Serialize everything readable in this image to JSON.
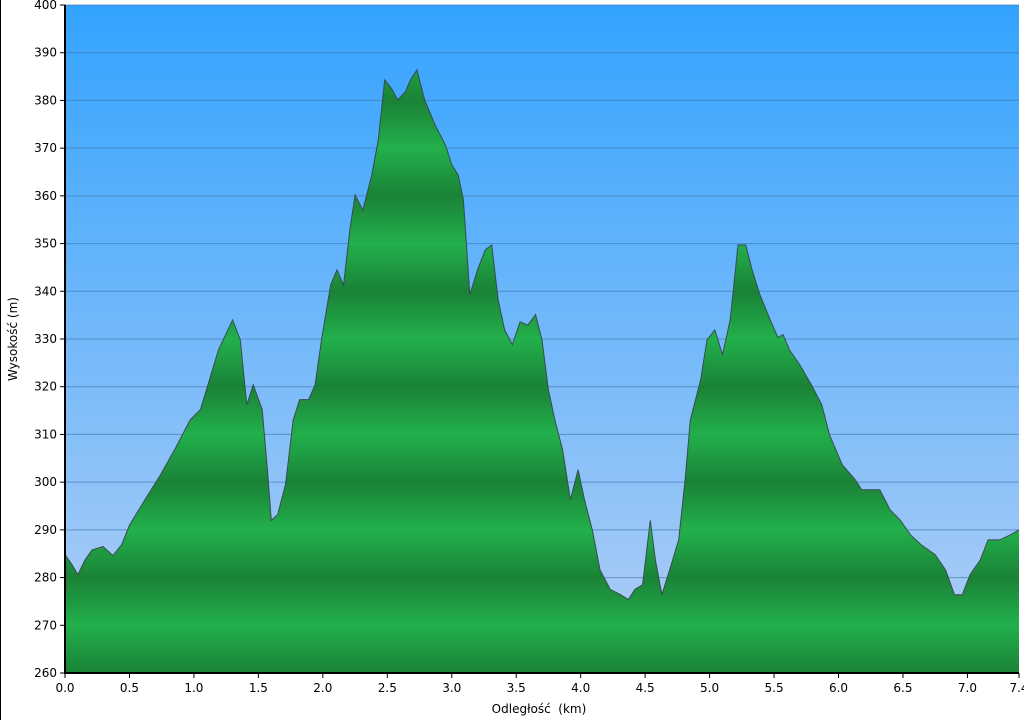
{
  "chart_data": {
    "type": "area",
    "title": "",
    "xlabel": "Odległość  (km)",
    "ylabel": "Wysokość (m)",
    "xlim": [
      0,
      7.4
    ],
    "ylim": [
      260,
      400
    ],
    "x_ticks": [
      "0.0",
      "0.5",
      "1.0",
      "1.5",
      "2.0",
      "2.5",
      "3.0",
      "3.5",
      "4.0",
      "4.5",
      "5.0",
      "5.5",
      "6.0",
      "6.5",
      "7.0",
      "7.4"
    ],
    "y_ticks": [
      "260",
      "270",
      "280",
      "290",
      "300",
      "310",
      "320",
      "330",
      "340",
      "350",
      "360",
      "370",
      "380",
      "390",
      "400"
    ],
    "grid": "horizontal",
    "colors": {
      "background_top": "#33a3ff",
      "background_bottom": "#b3cff5",
      "fill_light": "#22b04c",
      "fill_dark": "#1a8236",
      "outline": "#2a3a40",
      "grid": "#3a6fa8"
    },
    "x": [
      0,
      0.054,
      0.1,
      0.155,
      0.21,
      0.295,
      0.372,
      0.44,
      0.5,
      0.62,
      0.74,
      0.85,
      0.97,
      1.05,
      1.12,
      1.19,
      1.3,
      1.36,
      1.41,
      1.46,
      1.53,
      1.57,
      1.6,
      1.65,
      1.71,
      1.77,
      1.82,
      1.89,
      1.94,
      1.99,
      2.06,
      2.11,
      2.16,
      2.21,
      2.25,
      2.31,
      2.38,
      2.43,
      2.48,
      2.54,
      2.58,
      2.64,
      2.68,
      2.73,
      2.79,
      2.87,
      2.95,
      3.0,
      3.05,
      3.09,
      3.14,
      3.2,
      3.26,
      3.31,
      3.36,
      3.41,
      3.47,
      3.53,
      3.59,
      3.65,
      3.7,
      3.75,
      3.8,
      3.86,
      3.92,
      3.98,
      4.03,
      4.09,
      4.15,
      4.23,
      4.31,
      4.37,
      4.42,
      4.48,
      4.54,
      4.58,
      4.63,
      4.69,
      4.76,
      4.81,
      4.85,
      4.93,
      4.98,
      5.04,
      5.1,
      5.16,
      5.22,
      5.28,
      5.33,
      5.39,
      5.47,
      5.53,
      5.57,
      5.62,
      5.7,
      5.79,
      5.87,
      5.93,
      6.03,
      6.13,
      6.18,
      6.32,
      6.4,
      6.48,
      6.56,
      6.64,
      6.75,
      6.83,
      6.9,
      6.96,
      7.02,
      7.1,
      7.16,
      7.25,
      7.33,
      7.4
    ],
    "y": [
      284.8,
      282.7,
      280.6,
      283.7,
      285.8,
      286.5,
      284.6,
      286.9,
      291,
      296.3,
      301.5,
      306.8,
      313,
      315.2,
      321.4,
      327.7,
      334,
      329.8,
      316.2,
      320.4,
      315.2,
      302.6,
      292,
      293.2,
      299.5,
      313,
      317.3,
      317.3,
      320.4,
      329.8,
      341.3,
      344.5,
      341.3,
      352.9,
      360.2,
      357,
      364.4,
      371.7,
      384.3,
      382.2,
      380.1,
      381.8,
      384.3,
      386.4,
      380.1,
      374.9,
      370.7,
      366.5,
      364.4,
      359.2,
      339.3,
      344.5,
      348.7,
      349.7,
      338.2,
      331.9,
      328.8,
      333.6,
      332.9,
      335.1,
      329.8,
      319.4,
      313,
      306.8,
      296.3,
      302.6,
      296.3,
      290,
      281.6,
      277.5,
      276.4,
      275.4,
      277.5,
      278.5,
      292,
      283.7,
      276.4,
      281.6,
      287.9,
      300.5,
      313,
      321.4,
      329.8,
      331.9,
      326.7,
      334,
      349.7,
      349.7,
      344.5,
      339.3,
      334,
      330.3,
      330.9,
      327.7,
      324.6,
      320.4,
      316.2,
      309.9,
      303.6,
      300.5,
      298.4,
      298.4,
      294.2,
      292,
      288.9,
      286.9,
      284.8,
      281.6,
      276.4,
      276.4,
      280.6,
      283.7,
      287.9,
      287.9,
      288.9,
      290
    ]
  }
}
